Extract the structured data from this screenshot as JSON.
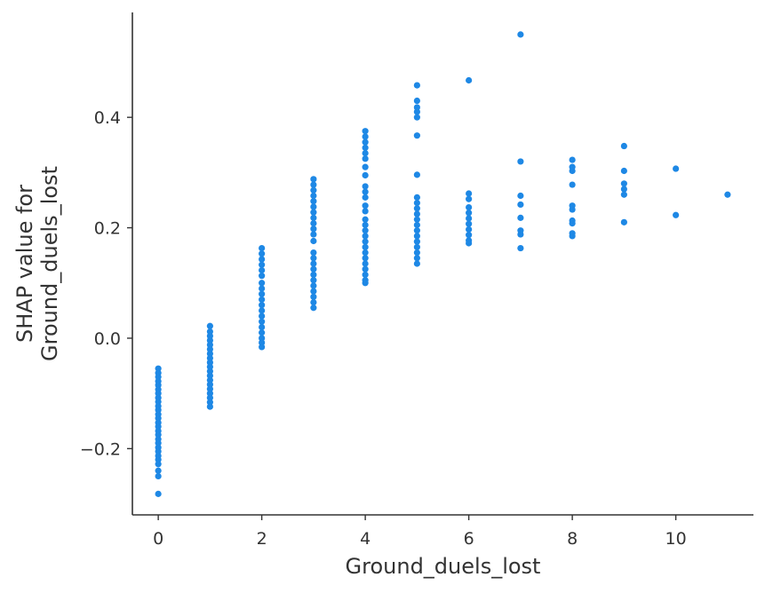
{
  "chart_data": {
    "type": "scatter",
    "xlabel": "Ground_duels_lost",
    "ylabel_lines": [
      "SHAP value for",
      "Ground_duels_lost"
    ],
    "xlim": [
      -0.5,
      11.5
    ],
    "ylim": [
      -0.32,
      0.59
    ],
    "x_ticks": [
      0,
      2,
      4,
      6,
      8,
      10
    ],
    "x_tick_labels": [
      "0",
      "2",
      "4",
      "6",
      "8",
      "10"
    ],
    "y_ticks": [
      -0.2,
      0.0,
      0.2,
      0.4
    ],
    "y_tick_labels": [
      "−0.2",
      "0.0",
      "0.2",
      "0.4"
    ],
    "grid": false,
    "point_color": "#1e88e5",
    "spine_color": "#333333",
    "series": [
      {
        "points": [
          [
            0,
            -0.055
          ],
          [
            0,
            -0.063
          ],
          [
            0,
            -0.07
          ],
          [
            0,
            -0.078
          ],
          [
            0,
            -0.085
          ],
          [
            0,
            -0.093
          ],
          [
            0,
            -0.1
          ],
          [
            0,
            -0.108
          ],
          [
            0,
            -0.115
          ],
          [
            0,
            -0.123
          ],
          [
            0,
            -0.13
          ],
          [
            0,
            -0.138
          ],
          [
            0,
            -0.145
          ],
          [
            0,
            -0.153
          ],
          [
            0,
            -0.16
          ],
          [
            0,
            -0.168
          ],
          [
            0,
            -0.175
          ],
          [
            0,
            -0.183
          ],
          [
            0,
            -0.19
          ],
          [
            0,
            -0.198
          ],
          [
            0,
            -0.205
          ],
          [
            0,
            -0.213
          ],
          [
            0,
            -0.22
          ],
          [
            0,
            -0.228
          ],
          [
            0,
            -0.24
          ],
          [
            0,
            -0.25
          ],
          [
            0,
            -0.282
          ],
          [
            1,
            0.022
          ],
          [
            1,
            0.012
          ],
          [
            1,
            0.004
          ],
          [
            1,
            -0.004
          ],
          [
            1,
            -0.012
          ],
          [
            1,
            -0.02
          ],
          [
            1,
            -0.028
          ],
          [
            1,
            -0.036
          ],
          [
            1,
            -0.044
          ],
          [
            1,
            -0.052
          ],
          [
            1,
            -0.06
          ],
          [
            1,
            -0.068
          ],
          [
            1,
            -0.076
          ],
          [
            1,
            -0.084
          ],
          [
            1,
            -0.092
          ],
          [
            1,
            -0.1
          ],
          [
            1,
            -0.108
          ],
          [
            1,
            -0.116
          ],
          [
            1,
            -0.124
          ],
          [
            2,
            0.163
          ],
          [
            2,
            0.153
          ],
          [
            2,
            0.143
          ],
          [
            2,
            0.133
          ],
          [
            2,
            0.123
          ],
          [
            2,
            0.113
          ],
          [
            2,
            0.1
          ],
          [
            2,
            0.09
          ],
          [
            2,
            0.08
          ],
          [
            2,
            0.07
          ],
          [
            2,
            0.06
          ],
          [
            2,
            0.05
          ],
          [
            2,
            0.04
          ],
          [
            2,
            0.03
          ],
          [
            2,
            0.02
          ],
          [
            2,
            0.01
          ],
          [
            2,
            0.0
          ],
          [
            2,
            -0.008
          ],
          [
            2,
            -0.016
          ],
          [
            3,
            0.288
          ],
          [
            3,
            0.278
          ],
          [
            3,
            0.268
          ],
          [
            3,
            0.258
          ],
          [
            3,
            0.248
          ],
          [
            3,
            0.238
          ],
          [
            3,
            0.228
          ],
          [
            3,
            0.218
          ],
          [
            3,
            0.208
          ],
          [
            3,
            0.198
          ],
          [
            3,
            0.188
          ],
          [
            3,
            0.176
          ],
          [
            3,
            0.155
          ],
          [
            3,
            0.145
          ],
          [
            3,
            0.135
          ],
          [
            3,
            0.125
          ],
          [
            3,
            0.115
          ],
          [
            3,
            0.105
          ],
          [
            3,
            0.095
          ],
          [
            3,
            0.085
          ],
          [
            3,
            0.075
          ],
          [
            3,
            0.065
          ],
          [
            3,
            0.055
          ],
          [
            4,
            0.375
          ],
          [
            4,
            0.365
          ],
          [
            4,
            0.355
          ],
          [
            4,
            0.345
          ],
          [
            4,
            0.335
          ],
          [
            4,
            0.325
          ],
          [
            4,
            0.31
          ],
          [
            4,
            0.295
          ],
          [
            4,
            0.275
          ],
          [
            4,
            0.265
          ],
          [
            4,
            0.255
          ],
          [
            4,
            0.24
          ],
          [
            4,
            0.23
          ],
          [
            4,
            0.215
          ],
          [
            4,
            0.205
          ],
          [
            4,
            0.195
          ],
          [
            4,
            0.185
          ],
          [
            4,
            0.175
          ],
          [
            4,
            0.165
          ],
          [
            4,
            0.155
          ],
          [
            4,
            0.145
          ],
          [
            4,
            0.135
          ],
          [
            4,
            0.125
          ],
          [
            4,
            0.115
          ],
          [
            4,
            0.105
          ],
          [
            4,
            0.1
          ],
          [
            5,
            0.458
          ],
          [
            5,
            0.43
          ],
          [
            5,
            0.418
          ],
          [
            5,
            0.41
          ],
          [
            5,
            0.4
          ],
          [
            5,
            0.367
          ],
          [
            5,
            0.296
          ],
          [
            5,
            0.255
          ],
          [
            5,
            0.245
          ],
          [
            5,
            0.235
          ],
          [
            5,
            0.225
          ],
          [
            5,
            0.215
          ],
          [
            5,
            0.205
          ],
          [
            5,
            0.195
          ],
          [
            5,
            0.185
          ],
          [
            5,
            0.175
          ],
          [
            5,
            0.165
          ],
          [
            5,
            0.155
          ],
          [
            5,
            0.145
          ],
          [
            5,
            0.135
          ],
          [
            6,
            0.467
          ],
          [
            6,
            0.262
          ],
          [
            6,
            0.252
          ],
          [
            6,
            0.237
          ],
          [
            6,
            0.227
          ],
          [
            6,
            0.217
          ],
          [
            6,
            0.207
          ],
          [
            6,
            0.197
          ],
          [
            6,
            0.187
          ],
          [
            6,
            0.177
          ],
          [
            6,
            0.172
          ],
          [
            7,
            0.55
          ],
          [
            7,
            0.32
          ],
          [
            7,
            0.258
          ],
          [
            7,
            0.242
          ],
          [
            7,
            0.218
          ],
          [
            7,
            0.195
          ],
          [
            7,
            0.188
          ],
          [
            7,
            0.163
          ],
          [
            8,
            0.323
          ],
          [
            8,
            0.31
          ],
          [
            8,
            0.303
          ],
          [
            8,
            0.278
          ],
          [
            8,
            0.24
          ],
          [
            8,
            0.233
          ],
          [
            8,
            0.213
          ],
          [
            8,
            0.208
          ],
          [
            8,
            0.19
          ],
          [
            8,
            0.185
          ],
          [
            9,
            0.348
          ],
          [
            9,
            0.303
          ],
          [
            9,
            0.28
          ],
          [
            9,
            0.27
          ],
          [
            9,
            0.26
          ],
          [
            9,
            0.21
          ],
          [
            10,
            0.307
          ],
          [
            10,
            0.223
          ],
          [
            11,
            0.26
          ]
        ]
      }
    ]
  }
}
